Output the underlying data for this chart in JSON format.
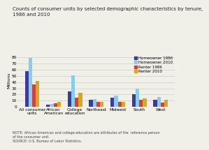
{
  "title": "Counts of consumer units by selected demographic characteristics by tenure,\n1986 and 2010",
  "ylabel": "Millions",
  "categories": [
    "All consumer\nunits",
    "African\nAmerican",
    "College\neducation",
    "Northeast",
    "Midwest",
    "South",
    "West"
  ],
  "series": {
    "Homeowner 1986": [
      58,
      4,
      25,
      12,
      15,
      20,
      11
    ],
    "Homeowner 2010": [
      79,
      5,
      51,
      13,
      18,
      30,
      16
    ],
    "Renter 1986": [
      36,
      6,
      15,
      8,
      8,
      11,
      7
    ],
    "Renter 2010": [
      42,
      8,
      23,
      8,
      8,
      14,
      11
    ]
  },
  "colors": {
    "Homeowner 1986": "#3c3c96",
    "Homeowner 2010": "#87ceeb",
    "Renter 1986": "#d04040",
    "Renter 2010": "#d4a820"
  },
  "ylim": [
    0,
    85
  ],
  "yticks": [
    0,
    10,
    20,
    30,
    40,
    50,
    60,
    70,
    80
  ],
  "note": "NOTE: African American and college education are attributes of the  reference person\nof the consumer unit.\nSOURCE: U.S. Bureau of Labor Statistics.",
  "background_color": "#f0efe8",
  "grid_color": "#cccccc",
  "bar_width": 0.17,
  "title_fontsize": 5.0,
  "ylabel_fontsize": 4.5,
  "tick_fontsize": 4.2,
  "legend_fontsize": 4.0,
  "note_fontsize": 3.5
}
